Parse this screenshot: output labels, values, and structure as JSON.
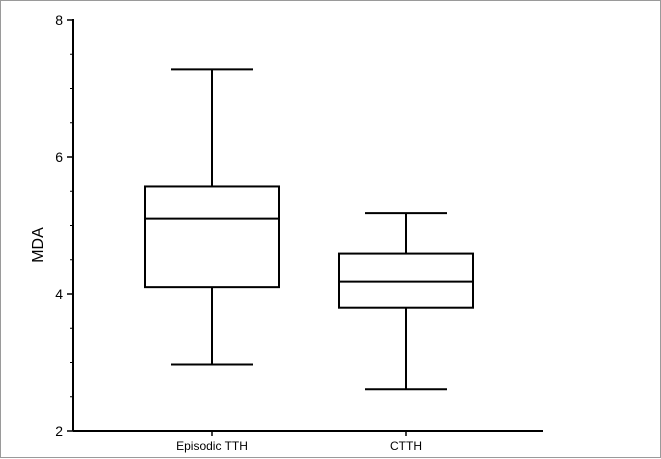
{
  "chart_data": {
    "type": "box",
    "title": "",
    "xlabel": "",
    "ylabel": "MDA",
    "ylim": [
      2,
      8
    ],
    "yticks": [
      2,
      4,
      6,
      8
    ],
    "ytick_labels": [
      "2",
      "4",
      "6",
      "8"
    ],
    "grid": false,
    "categories": [
      "Episodic TTH",
      "CTTH"
    ],
    "boxes": [
      {
        "category": "Episodic TTH",
        "min": 2.97,
        "q1": 4.1,
        "median": 5.1,
        "q3": 5.57,
        "max": 7.28
      },
      {
        "category": "CTTH",
        "min": 2.61,
        "q1": 3.8,
        "median": 4.18,
        "q3": 4.59,
        "max": 5.18
      }
    ],
    "colors": {
      "stroke": "#000000",
      "background": "#ffffff",
      "frame": "#9a9a9a"
    }
  }
}
